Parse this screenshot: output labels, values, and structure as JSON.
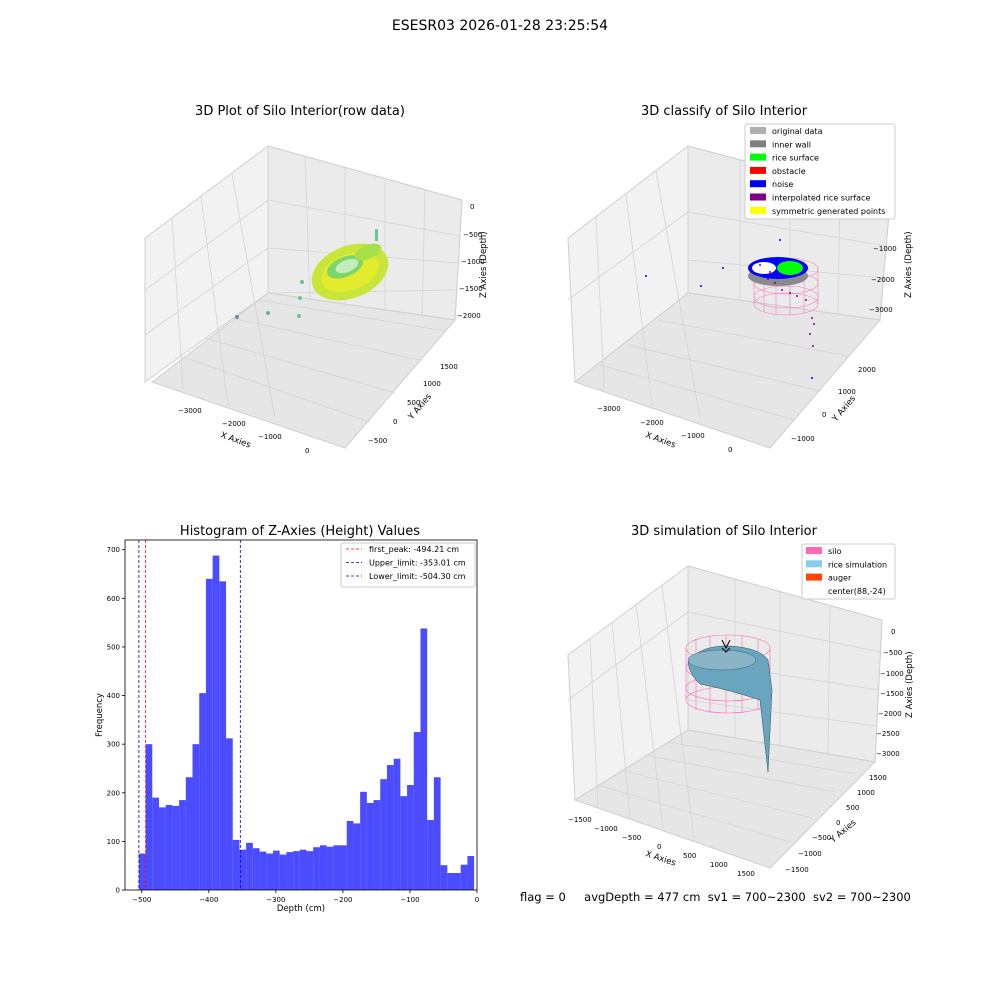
{
  "figure": {
    "suptitle": "ESESR03 2026-01-28 23:25:54"
  },
  "panels": {
    "raw": {
      "title": "3D Plot of Silo Interior(row data)",
      "xlabel": "X Axies",
      "ylabel": "Y Axies",
      "zlabel": "Z Axies (Depth)",
      "xticks": [
        "−3000",
        "−2000",
        "−1000",
        "0"
      ],
      "yticks": [
        "−500",
        "0",
        "500",
        "1000",
        "1500"
      ],
      "zticks": [
        "0",
        "−500",
        "−1000",
        "−1500",
        "−2000"
      ]
    },
    "classify": {
      "title": "3D classify of Silo Interior",
      "xlabel": "X Axies",
      "ylabel": "Y Axies",
      "zlabel": "Z Axies (Depth)",
      "xticks": [
        "−3000",
        "−2000",
        "−1000",
        "0"
      ],
      "yticks": [
        "−1000",
        "0",
        "1000",
        "2000"
      ],
      "zticks": [
        "−1000",
        "−2000",
        "−3000"
      ],
      "legend": [
        {
          "label": "original data",
          "color": "#b0b0b0"
        },
        {
          "label": "inner wall",
          "color": "#808080"
        },
        {
          "label": "rice surface",
          "color": "#00ff00"
        },
        {
          "label": "obstacle",
          "color": "#ff0000"
        },
        {
          "label": "noise",
          "color": "#0000ff"
        },
        {
          "label": "interpolated rice surface",
          "color": "#800080"
        },
        {
          "label": "symmetric generated points",
          "color": "#ffff00"
        }
      ]
    },
    "simulation": {
      "title": "3D simulation of Silo Interior",
      "xlabel": "X Axies",
      "ylabel": "Y Axies",
      "zlabel": "Z Axies (Depth)",
      "xticks": [
        "−1500",
        "−1000",
        "−500",
        "0",
        "500",
        "1000",
        "1500"
      ],
      "yticks": [
        "−1500",
        "−1000",
        "−500",
        "0",
        "500",
        "1000",
        "1500"
      ],
      "zticks": [
        "0",
        "−500",
        "−1000",
        "−1500",
        "−2000",
        "−2500",
        "−3000"
      ],
      "legend": [
        {
          "label": "silo",
          "color": "#ff69b4"
        },
        {
          "label": "rice simulation",
          "color": "#87ceeb"
        },
        {
          "label": "auger",
          "color": "#ff4500"
        },
        {
          "label": "center(88,-24)",
          "color": ""
        }
      ]
    }
  },
  "chart_data": [
    {
      "type": "bar",
      "title": "Histogram of Z-Axies (Height) Values",
      "xlabel": "Depth (cm)",
      "ylabel": "Frequency",
      "xlim": [
        -525,
        0
      ],
      "ylim": [
        0,
        720
      ],
      "xticks": [
        -500,
        -400,
        -300,
        -200,
        -100,
        0
      ],
      "yticks": [
        0,
        100,
        200,
        300,
        400,
        500,
        600,
        700
      ],
      "bin_start": -504.3,
      "bin_width": 10,
      "color": "#0000ff",
      "values": [
        75,
        300,
        190,
        170,
        175,
        173,
        185,
        232,
        300,
        405,
        640,
        688,
        635,
        312,
        103,
        83,
        97,
        86,
        79,
        75,
        81,
        73,
        78,
        80,
        83,
        80,
        88,
        92,
        89,
        92,
        92,
        142,
        137,
        202,
        179,
        185,
        228,
        257,
        270,
        193,
        216,
        325,
        538,
        144,
        232,
        51,
        35,
        35,
        52,
        70
      ],
      "vlines": [
        {
          "label": "first_peak: -494.21 cm",
          "x": -494.21,
          "color": "#ff0000"
        },
        {
          "label": "Upper_limit: -353.01 cm",
          "x": -353.01,
          "color": "#0000aa"
        },
        {
          "label": "Lower_limit: -504.30 cm",
          "x": -504.3,
          "color": "#0000aa"
        }
      ]
    }
  ],
  "status": {
    "flag": "flag = 0",
    "avg": "avgDepth = 477 cm",
    "sv1": "sv1 = 700~2300",
    "sv2": "sv2 = 700~2300"
  }
}
